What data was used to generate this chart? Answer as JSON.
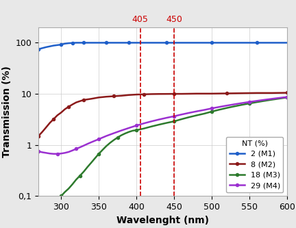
{
  "title": "",
  "xlabel": "Wavelenght (nm)",
  "ylabel": "Transmission (%)",
  "xmin": 270,
  "xmax": 600,
  "ymin": 0.1,
  "ymax": 200,
  "vlines": [
    405,
    450
  ],
  "vline_color": "#cc0000",
  "vline_labels_color": "#cc0000",
  "yticks": [
    0.1,
    1,
    10,
    100
  ],
  "ytick_labels": [
    "0,1",
    "1",
    "10",
    "100"
  ],
  "xticks": [
    300,
    350,
    400,
    450,
    500,
    550,
    600
  ],
  "legend_title": "NT (%)",
  "curves": [
    {
      "label": "2 (M1)",
      "color": "#1f5fc9",
      "marker": "o",
      "markersize": 3,
      "linewidth": 1.8,
      "x": [
        270,
        280,
        290,
        300,
        305,
        310,
        315,
        320,
        325,
        330,
        340,
        350,
        360,
        370,
        380,
        390,
        400,
        420,
        440,
        460,
        480,
        500,
        520,
        540,
        560,
        580,
        600
      ],
      "y": [
        75,
        82,
        88,
        92,
        96,
        98,
        99,
        100,
        100,
        100,
        100,
        100,
        100,
        100,
        100,
        100,
        100,
        100,
        100,
        100,
        100,
        100,
        100,
        100,
        100,
        100,
        100
      ]
    },
    {
      "label": "8 (M2)",
      "color": "#8b1a1a",
      "marker": "o",
      "markersize": 3,
      "linewidth": 1.8,
      "x": [
        270,
        275,
        280,
        285,
        290,
        295,
        300,
        305,
        310,
        315,
        320,
        325,
        330,
        340,
        350,
        360,
        370,
        380,
        390,
        400,
        410,
        420,
        430,
        440,
        450,
        460,
        480,
        500,
        520,
        540,
        560,
        580,
        600
      ],
      "y": [
        1.5,
        1.8,
        2.2,
        2.7,
        3.2,
        3.8,
        4.3,
        5.0,
        5.6,
        6.2,
        6.8,
        7.2,
        7.6,
        8.0,
        8.5,
        8.8,
        9.0,
        9.2,
        9.5,
        9.7,
        9.8,
        9.9,
        9.95,
        9.97,
        10.0,
        10.0,
        10.1,
        10.1,
        10.2,
        10.3,
        10.4,
        10.4,
        10.5
      ]
    },
    {
      "label": "18 (M3)",
      "color": "#2d7a2d",
      "marker": "o",
      "markersize": 3,
      "linewidth": 1.8,
      "x": [
        300,
        305,
        310,
        315,
        320,
        325,
        330,
        335,
        340,
        345,
        350,
        355,
        360,
        365,
        370,
        375,
        380,
        385,
        390,
        395,
        400,
        410,
        420,
        430,
        440,
        450,
        460,
        470,
        480,
        490,
        500,
        510,
        520,
        530,
        540,
        550,
        560,
        570,
        580,
        590,
        600
      ],
      "y": [
        0.1,
        0.12,
        0.14,
        0.17,
        0.21,
        0.25,
        0.3,
        0.37,
        0.45,
        0.55,
        0.67,
        0.8,
        0.95,
        1.1,
        1.25,
        1.4,
        1.55,
        1.68,
        1.8,
        1.9,
        1.95,
        2.1,
        2.3,
        2.5,
        2.7,
        2.9,
        3.2,
        3.5,
        3.8,
        4.1,
        4.5,
        4.9,
        5.3,
        5.7,
        6.1,
        6.5,
        6.9,
        7.3,
        7.7,
        8.1,
        8.5
      ]
    },
    {
      "label": "29 (M4)",
      "color": "#9b30d0",
      "marker": "o",
      "markersize": 3,
      "linewidth": 1.8,
      "x": [
        270,
        275,
        280,
        285,
        290,
        295,
        300,
        305,
        310,
        315,
        320,
        325,
        330,
        335,
        340,
        350,
        360,
        370,
        380,
        390,
        400,
        410,
        420,
        430,
        440,
        450,
        460,
        470,
        480,
        490,
        500,
        510,
        520,
        530,
        540,
        550,
        560,
        570,
        580,
        590,
        600
      ],
      "y": [
        0.75,
        0.72,
        0.7,
        0.68,
        0.67,
        0.67,
        0.68,
        0.7,
        0.73,
        0.78,
        0.84,
        0.9,
        0.97,
        1.05,
        1.13,
        1.3,
        1.5,
        1.7,
        1.92,
        2.15,
        2.4,
        2.65,
        2.9,
        3.15,
        3.4,
        3.65,
        3.95,
        4.25,
        4.55,
        4.85,
        5.2,
        5.55,
        5.9,
        6.25,
        6.6,
        6.95,
        7.3,
        7.65,
        8.0,
        8.35,
        8.7
      ]
    }
  ],
  "bg_color": "#e8e8e8",
  "plot_bg_color": "#ffffff",
  "grid_color": "#cccccc"
}
